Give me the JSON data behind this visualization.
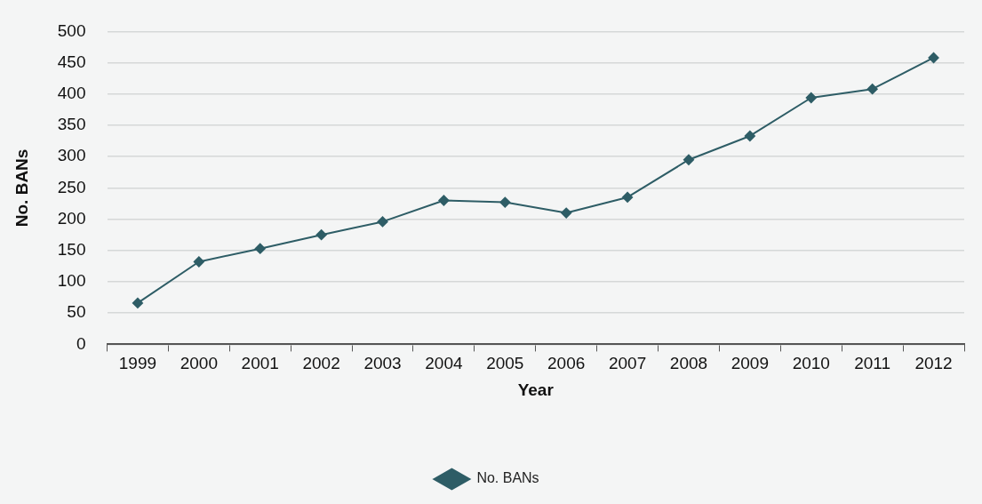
{
  "chart_data": {
    "type": "line",
    "xlabel": "Year",
    "ylabel": "No. BANs",
    "categories": [
      "1999",
      "2000",
      "2001",
      "2002",
      "2003",
      "2004",
      "2005",
      "2006",
      "2007",
      "2008",
      "2009",
      "2010",
      "2011",
      "2012"
    ],
    "series": [
      {
        "name": "No. BANs",
        "color": "#2e5d66",
        "values": [
          66,
          132,
          153,
          175,
          196,
          230,
          227,
          210,
          235,
          295,
          333,
          394,
          408,
          458
        ]
      }
    ],
    "ylim": [
      0,
      500
    ],
    "yticks": [
      0,
      50,
      100,
      150,
      200,
      250,
      300,
      350,
      400,
      450,
      500
    ],
    "grid": "y",
    "legend": "bottom",
    "marker": "diamond",
    "line_style": "solid"
  }
}
